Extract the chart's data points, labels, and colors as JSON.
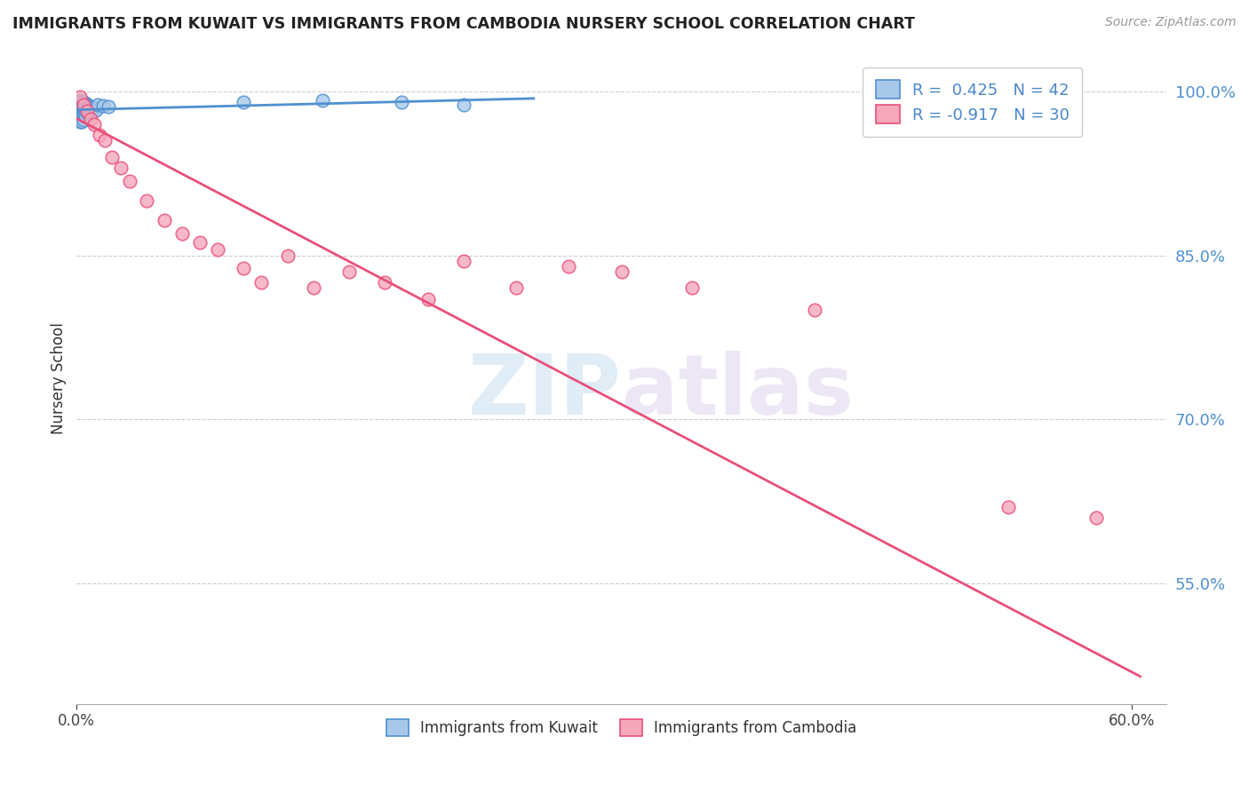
{
  "title": "IMMIGRANTS FROM KUWAIT VS IMMIGRANTS FROM CAMBODIA NURSERY SCHOOL CORRELATION CHART",
  "source": "Source: ZipAtlas.com",
  "ylabel": "Nursery School",
  "xlim": [
    0.0,
    0.62
  ],
  "ylim": [
    0.44,
    1.035
  ],
  "yticks": [
    0.55,
    0.7,
    0.85,
    1.0
  ],
  "ytick_labels": [
    "55.0%",
    "70.0%",
    "85.0%",
    "100.0%"
  ],
  "xtick_vals": [
    0.0,
    0.6
  ],
  "xtick_labels": [
    "0.0%",
    "60.0%"
  ],
  "kuwait_R": 0.425,
  "kuwait_N": 42,
  "cambodia_R": -0.917,
  "cambodia_N": 30,
  "kuwait_color": "#a8c8ea",
  "cambodia_color": "#f5a8bc",
  "kuwait_line_color": "#5090d0",
  "cambodia_line_color": "#e8507a",
  "watermark_zip": "ZIP",
  "watermark_atlas": "atlas",
  "background_color": "#ffffff",
  "kuwait_x": [
    0.001,
    0.001,
    0.002,
    0.002,
    0.002,
    0.002,
    0.002,
    0.002,
    0.002,
    0.003,
    0.003,
    0.003,
    0.003,
    0.003,
    0.003,
    0.003,
    0.004,
    0.004,
    0.004,
    0.004,
    0.004,
    0.005,
    0.005,
    0.005,
    0.005,
    0.006,
    0.006,
    0.006,
    0.007,
    0.007,
    0.008,
    0.008,
    0.009,
    0.01,
    0.011,
    0.012,
    0.015,
    0.018,
    0.095,
    0.14,
    0.185,
    0.22
  ],
  "kuwait_y": [
    0.99,
    0.985,
    0.992,
    0.988,
    0.984,
    0.98,
    0.978,
    0.975,
    0.972,
    0.991,
    0.988,
    0.985,
    0.982,
    0.978,
    0.975,
    0.972,
    0.99,
    0.986,
    0.982,
    0.978,
    0.974,
    0.989,
    0.985,
    0.981,
    0.977,
    0.988,
    0.984,
    0.98,
    0.987,
    0.983,
    0.986,
    0.982,
    0.985,
    0.984,
    0.983,
    0.988,
    0.987,
    0.986,
    0.99,
    0.992,
    0.99,
    0.988
  ],
  "cambodia_x": [
    0.002,
    0.004,
    0.006,
    0.008,
    0.01,
    0.013,
    0.016,
    0.02,
    0.025,
    0.03,
    0.04,
    0.05,
    0.06,
    0.07,
    0.08,
    0.095,
    0.105,
    0.12,
    0.135,
    0.155,
    0.175,
    0.2,
    0.22,
    0.25,
    0.28,
    0.31,
    0.35,
    0.42,
    0.53,
    0.58
  ],
  "cambodia_y": [
    0.995,
    0.988,
    0.982,
    0.975,
    0.97,
    0.96,
    0.955,
    0.94,
    0.93,
    0.918,
    0.9,
    0.882,
    0.87,
    0.862,
    0.855,
    0.838,
    0.825,
    0.85,
    0.82,
    0.835,
    0.825,
    0.81,
    0.845,
    0.82,
    0.84,
    0.835,
    0.82,
    0.8,
    0.62,
    0.61
  ],
  "cambodia_trend_x": [
    0.0,
    0.605
  ],
  "cambodia_trend_y": [
    0.975,
    0.465
  ]
}
